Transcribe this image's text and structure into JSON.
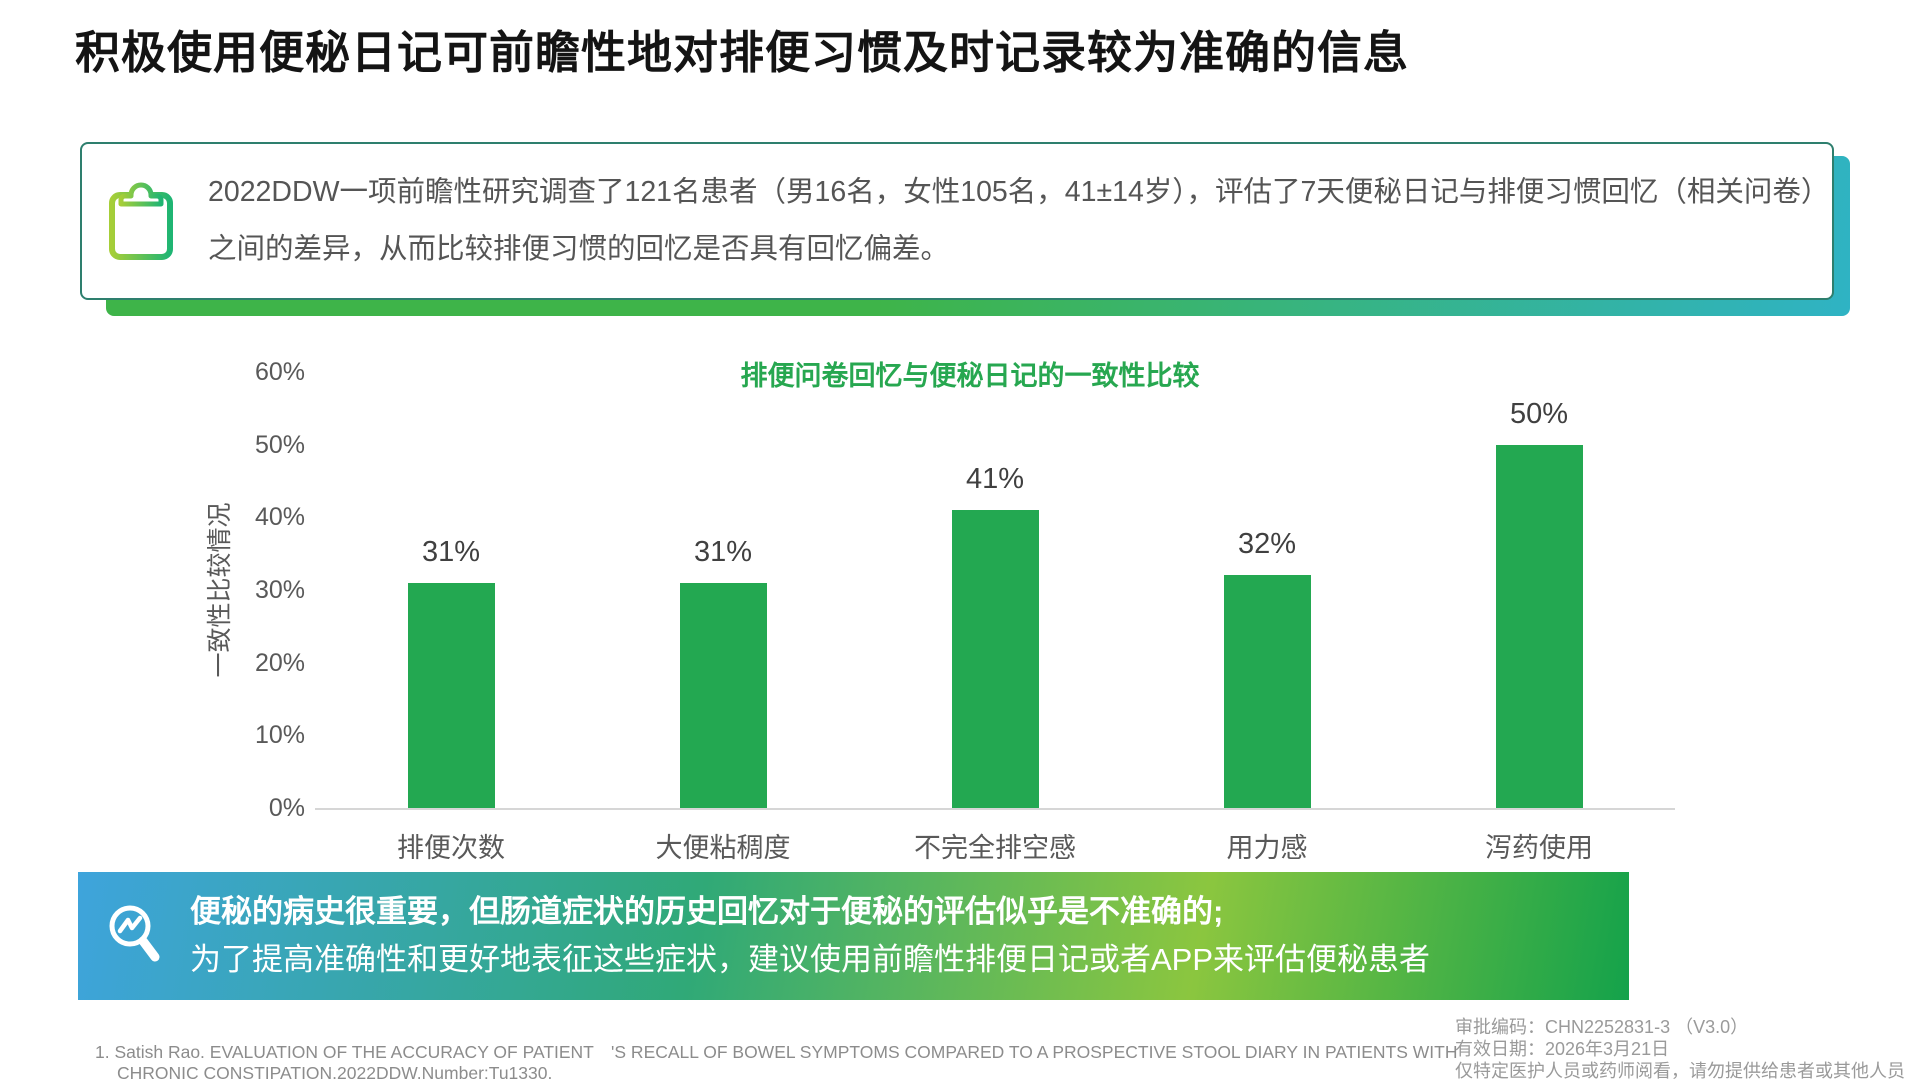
{
  "page": {
    "title": "积极使用便秘日记可前瞻性地对排便习惯及时记录较为准确的信息"
  },
  "study_box": {
    "icon": "clipboard-checklist-icon",
    "text_line1": "2022DDW一项前瞻性研究调查了121名患者（男16名，女性105名，41±14岁），评估了7天便秘日记与排便习惯回忆（相关问卷）",
    "text_line2": "之间的差异，从而比较排便习惯的回忆是否具有回忆偏差。"
  },
  "chart_data": {
    "type": "bar",
    "title": "排便问卷回忆与便秘日记的一致性比较",
    "categories": [
      "排便次数",
      "大便粘稠度",
      "不完全排空感",
      "用力感",
      "泻药使用"
    ],
    "values": [
      31,
      31,
      41,
      32,
      50
    ],
    "value_labels": [
      "31%",
      "31%",
      "41%",
      "32%",
      "50%"
    ],
    "xlabel": "",
    "ylabel": "一致性比较情况",
    "ylim": [
      0,
      60
    ],
    "yticks": [
      "0%",
      "10%",
      "20%",
      "30%",
      "40%",
      "50%",
      "60%"
    ],
    "grid": false,
    "legend": "none",
    "bar_color": "#23A851",
    "title_color": "#27A750",
    "tick_color": "#595959",
    "value_label_color": "#404040"
  },
  "conclusion_banner": {
    "icon": "magnifier-trend-icon",
    "line1": "便秘的病史很重要，但肠道症状的历史回忆对于便秘的评估似乎是不准确的;",
    "line2": "为了提高准确性和更好地表征这些症状，建议使用前瞻性排便日记或者APP来评估便秘患者",
    "gradient_left": "#3EA4DC",
    "gradient_right": "#14A24B"
  },
  "footer": {
    "reference": "1. Satish Rao. EVALUATION OF THE ACCURACY OF PATIENT　'S RECALL OF BOWEL SYMPTOMS COMPARED TO A PROSPECTIVE STOOL DIARY IN PATIENTS WITH CHRONIC CONSTIPATION.2022DDW.Number:Tu1330.",
    "approval_code": "审批编码：CHN2252831-3 （V3.0）",
    "valid_date": "有效日期：2026年3月21日",
    "audience_note": "仅特定医护人员或药师阅看，请勿提供给患者或其他人员"
  }
}
